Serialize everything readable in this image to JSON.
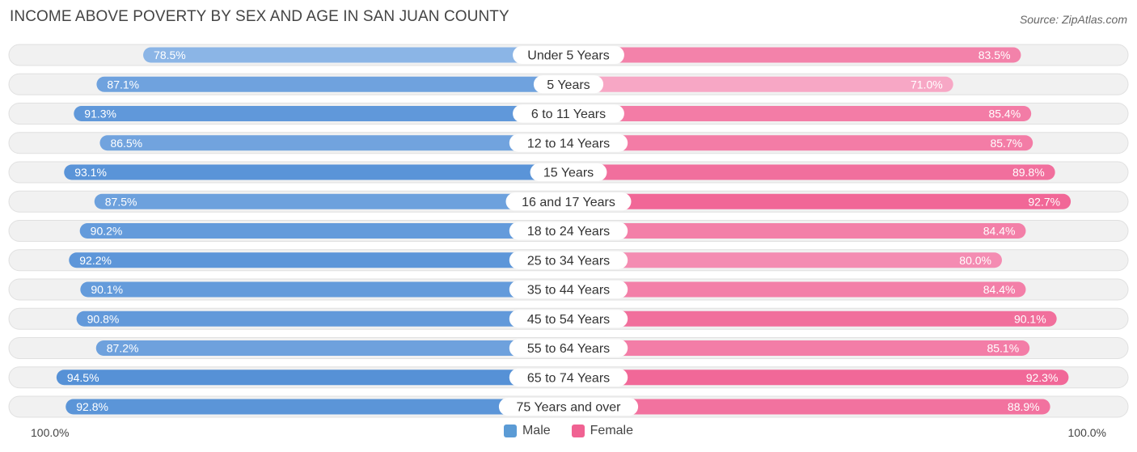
{
  "chart_data": {
    "type": "bar",
    "orientation": "horizontal-diverging",
    "title": "INCOME ABOVE POVERTY BY SEX AND AGE IN SAN JUAN COUNTY",
    "source": "Source: ZipAtlas.com",
    "categories": [
      "Under 5 Years",
      "5 Years",
      "6 to 11 Years",
      "12 to 14 Years",
      "15 Years",
      "16 and 17 Years",
      "18 to 24 Years",
      "25 to 34 Years",
      "35 to 44 Years",
      "45 to 54 Years",
      "55 to 64 Years",
      "65 to 74 Years",
      "75 Years and over"
    ],
    "series": [
      {
        "name": "Male",
        "color": "#5b9bd5",
        "values": [
          78.5,
          87.1,
          91.3,
          86.5,
          93.1,
          87.5,
          90.2,
          92.2,
          90.1,
          90.8,
          87.2,
          94.5,
          92.8
        ],
        "labels": [
          "78.5%",
          "87.1%",
          "91.3%",
          "86.5%",
          "93.1%",
          "87.5%",
          "90.2%",
          "92.2%",
          "90.1%",
          "90.8%",
          "87.2%",
          "94.5%",
          "92.8%"
        ]
      },
      {
        "name": "Female",
        "color": "#f06292",
        "values": [
          83.5,
          71.0,
          85.4,
          85.7,
          89.8,
          92.7,
          84.4,
          80.0,
          84.4,
          90.1,
          85.1,
          92.3,
          88.9
        ],
        "labels": [
          "83.5%",
          "71.0%",
          "85.4%",
          "85.7%",
          "89.8%",
          "92.7%",
          "84.4%",
          "80.0%",
          "84.4%",
          "90.1%",
          "85.1%",
          "92.3%",
          "88.9%"
        ]
      }
    ],
    "xlim": [
      0,
      100
    ],
    "axis_left_label": "100.0%",
    "axis_right_label": "100.0%",
    "legend": {
      "position": "bottom-center",
      "entries": [
        "Male",
        "Female"
      ]
    }
  }
}
